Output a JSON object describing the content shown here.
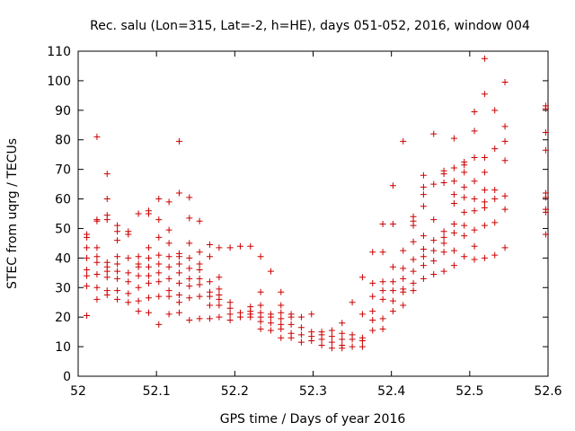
{
  "chart_data": {
    "type": "scatter",
    "title": "Rec. salu (Lon=315, Lat=-2, h=HE), days 051-052, 2016, window 004",
    "xlabel": "GPS time / Days of year 2016",
    "ylabel": "STEC from uqrg / TECUs",
    "xlim": [
      52,
      52.6
    ],
    "ylim": [
      0,
      110
    ],
    "xticks": [
      52,
      52.1,
      52.2,
      52.3,
      52.4,
      52.5,
      52.6
    ],
    "xtick_labels": [
      "52",
      "52.1",
      "52.2",
      "52.3",
      "52.4",
      "52.5",
      "52.6"
    ],
    "yticks": [
      0,
      10,
      20,
      30,
      40,
      50,
      60,
      70,
      80,
      90,
      100,
      110
    ],
    "ytick_labels": [
      "0",
      "10",
      "20",
      "30",
      "40",
      "50",
      "60",
      "70",
      "80",
      "90",
      "100",
      "110"
    ],
    "marker": "+",
    "color": "#cc0000",
    "grid": false,
    "series": [
      {
        "name": "STEC",
        "points": [
          [
            52.011,
            20.5
          ],
          [
            52.011,
            30.5
          ],
          [
            52.011,
            34.0
          ],
          [
            52.011,
            36.0
          ],
          [
            52.011,
            40.0
          ],
          [
            52.011,
            43.5
          ],
          [
            52.011,
            47.0
          ],
          [
            52.011,
            48.0
          ],
          [
            52.024,
            26.0
          ],
          [
            52.024,
            30.0
          ],
          [
            52.024,
            34.5
          ],
          [
            52.024,
            38.5
          ],
          [
            52.024,
            40.5
          ],
          [
            52.024,
            43.5
          ],
          [
            52.024,
            52.5
          ],
          [
            52.024,
            53.0
          ],
          [
            52.024,
            81.0
          ],
          [
            52.037,
            27.5
          ],
          [
            52.037,
            29.0
          ],
          [
            52.037,
            33.5
          ],
          [
            52.037,
            35.5
          ],
          [
            52.037,
            37.0
          ],
          [
            52.037,
            38.5
          ],
          [
            52.037,
            53.0
          ],
          [
            52.037,
            54.5
          ],
          [
            52.037,
            60.0
          ],
          [
            52.037,
            68.5
          ],
          [
            52.05,
            26.0
          ],
          [
            52.05,
            29.0
          ],
          [
            52.05,
            33.0
          ],
          [
            52.05,
            35.5
          ],
          [
            52.05,
            38.0
          ],
          [
            52.05,
            40.5
          ],
          [
            52.05,
            46.0
          ],
          [
            52.05,
            49.0
          ],
          [
            52.05,
            51.0
          ],
          [
            52.064,
            25.0
          ],
          [
            52.064,
            28.0
          ],
          [
            52.064,
            32.0
          ],
          [
            52.064,
            35.0
          ],
          [
            52.064,
            40.0
          ],
          [
            52.064,
            48.0
          ],
          [
            52.064,
            49.0
          ],
          [
            52.077,
            22.0
          ],
          [
            52.077,
            25.5
          ],
          [
            52.077,
            30.0
          ],
          [
            52.077,
            34.0
          ],
          [
            52.077,
            37.0
          ],
          [
            52.077,
            38.0
          ],
          [
            52.077,
            40.5
          ],
          [
            52.077,
            55.0
          ],
          [
            52.09,
            21.5
          ],
          [
            52.09,
            26.5
          ],
          [
            52.09,
            31.5
          ],
          [
            52.09,
            34.0
          ],
          [
            52.09,
            37.0
          ],
          [
            52.09,
            40.0
          ],
          [
            52.09,
            43.5
          ],
          [
            52.09,
            55.0
          ],
          [
            52.09,
            56.0
          ],
          [
            52.103,
            17.5
          ],
          [
            52.103,
            27.0
          ],
          [
            52.103,
            32.0
          ],
          [
            52.103,
            35.0
          ],
          [
            52.103,
            38.0
          ],
          [
            52.103,
            41.0
          ],
          [
            52.103,
            47.0
          ],
          [
            52.103,
            53.0
          ],
          [
            52.103,
            60.0
          ],
          [
            52.116,
            21.0
          ],
          [
            52.116,
            27.0
          ],
          [
            52.116,
            29.0
          ],
          [
            52.116,
            33.0
          ],
          [
            52.116,
            37.0
          ],
          [
            52.116,
            40.5
          ],
          [
            52.116,
            45.0
          ],
          [
            52.116,
            49.5
          ],
          [
            52.116,
            59.0
          ],
          [
            52.129,
            21.5
          ],
          [
            52.129,
            25.0
          ],
          [
            52.129,
            27.5
          ],
          [
            52.129,
            31.5
          ],
          [
            52.129,
            35.0
          ],
          [
            52.129,
            38.0
          ],
          [
            52.129,
            40.5
          ],
          [
            52.129,
            41.5
          ],
          [
            52.129,
            62.0
          ],
          [
            52.129,
            79.5
          ],
          [
            52.142,
            19.0
          ],
          [
            52.142,
            26.5
          ],
          [
            52.142,
            30.5
          ],
          [
            52.142,
            33.0
          ],
          [
            52.142,
            36.5
          ],
          [
            52.142,
            40.0
          ],
          [
            52.142,
            45.0
          ],
          [
            52.142,
            53.5
          ],
          [
            52.142,
            60.5
          ],
          [
            52.155,
            19.5
          ],
          [
            52.155,
            27.0
          ],
          [
            52.155,
            31.0
          ],
          [
            52.155,
            33.0
          ],
          [
            52.155,
            36.0
          ],
          [
            52.155,
            38.0
          ],
          [
            52.155,
            42.0
          ],
          [
            52.155,
            52.5
          ],
          [
            52.168,
            19.5
          ],
          [
            52.168,
            24.0
          ],
          [
            52.168,
            27.0
          ],
          [
            52.168,
            28.5
          ],
          [
            52.168,
            32.0
          ],
          [
            52.168,
            40.5
          ],
          [
            52.168,
            44.5
          ],
          [
            52.18,
            20.0
          ],
          [
            52.18,
            24.0
          ],
          [
            52.18,
            26.0
          ],
          [
            52.18,
            27.5
          ],
          [
            52.18,
            29.5
          ],
          [
            52.18,
            33.5
          ],
          [
            52.18,
            43.5
          ],
          [
            52.194,
            19.0
          ],
          [
            52.194,
            21.0
          ],
          [
            52.194,
            23.0
          ],
          [
            52.194,
            25.0
          ],
          [
            52.194,
            43.5
          ],
          [
            52.207,
            20.0
          ],
          [
            52.207,
            21.5
          ],
          [
            52.207,
            44.0
          ],
          [
            52.22,
            20.0
          ],
          [
            52.22,
            21.0
          ],
          [
            52.22,
            22.0
          ],
          [
            52.22,
            23.5
          ],
          [
            52.22,
            44.0
          ],
          [
            52.233,
            16.0
          ],
          [
            52.233,
            18.5
          ],
          [
            52.233,
            20.0
          ],
          [
            52.233,
            21.5
          ],
          [
            52.233,
            24.0
          ],
          [
            52.233,
            28.5
          ],
          [
            52.233,
            40.5
          ],
          [
            52.246,
            15.5
          ],
          [
            52.246,
            18.0
          ],
          [
            52.246,
            20.0
          ],
          [
            52.246,
            21.0
          ],
          [
            52.246,
            35.5
          ],
          [
            52.259,
            13.0
          ],
          [
            52.259,
            16.0
          ],
          [
            52.259,
            17.5
          ],
          [
            52.259,
            19.5
          ],
          [
            52.259,
            21.5
          ],
          [
            52.259,
            24.0
          ],
          [
            52.259,
            28.5
          ],
          [
            52.272,
            13.0
          ],
          [
            52.272,
            14.5
          ],
          [
            52.272,
            17.5
          ],
          [
            52.272,
            20.0
          ],
          [
            52.272,
            21.0
          ],
          [
            52.285,
            11.5
          ],
          [
            52.285,
            14.0
          ],
          [
            52.285,
            16.5
          ],
          [
            52.285,
            20.0
          ],
          [
            52.298,
            12.0
          ],
          [
            52.298,
            13.5
          ],
          [
            52.298,
            15.0
          ],
          [
            52.298,
            21.0
          ],
          [
            52.311,
            10.5
          ],
          [
            52.311,
            12.5
          ],
          [
            52.311,
            14.0
          ],
          [
            52.311,
            15.0
          ],
          [
            52.324,
            9.5
          ],
          [
            52.324,
            11.5
          ],
          [
            52.324,
            13.5
          ],
          [
            52.324,
            15.5
          ],
          [
            52.337,
            9.5
          ],
          [
            52.337,
            10.5
          ],
          [
            52.337,
            12.5
          ],
          [
            52.337,
            14.5
          ],
          [
            52.337,
            18.0
          ],
          [
            52.35,
            10.0
          ],
          [
            52.35,
            12.5
          ],
          [
            52.35,
            14.0
          ],
          [
            52.35,
            25.0
          ],
          [
            52.363,
            10.0
          ],
          [
            52.363,
            12.0
          ],
          [
            52.363,
            13.0
          ],
          [
            52.363,
            21.0
          ],
          [
            52.363,
            33.5
          ],
          [
            52.376,
            15.5
          ],
          [
            52.376,
            19.0
          ],
          [
            52.376,
            22.0
          ],
          [
            52.376,
            27.0
          ],
          [
            52.376,
            31.5
          ],
          [
            52.376,
            42.0
          ],
          [
            52.389,
            16.0
          ],
          [
            52.389,
            19.5
          ],
          [
            52.389,
            26.0
          ],
          [
            52.389,
            29.0
          ],
          [
            52.389,
            32.0
          ],
          [
            52.389,
            42.0
          ],
          [
            52.389,
            51.5
          ],
          [
            52.402,
            22.0
          ],
          [
            52.402,
            25.5
          ],
          [
            52.402,
            29.0
          ],
          [
            52.402,
            32.0
          ],
          [
            52.402,
            37.0
          ],
          [
            52.402,
            51.5
          ],
          [
            52.402,
            64.5
          ],
          [
            52.415,
            24.0
          ],
          [
            52.415,
            28.5
          ],
          [
            52.415,
            29.5
          ],
          [
            52.415,
            33.0
          ],
          [
            52.415,
            36.5
          ],
          [
            52.415,
            42.5
          ],
          [
            52.415,
            79.5
          ],
          [
            52.428,
            29.0
          ],
          [
            52.428,
            31.5
          ],
          [
            52.428,
            35.5
          ],
          [
            52.428,
            39.5
          ],
          [
            52.428,
            45.5
          ],
          [
            52.428,
            51.0
          ],
          [
            52.428,
            52.5
          ],
          [
            52.428,
            54.0
          ],
          [
            52.441,
            33.0
          ],
          [
            52.441,
            37.5
          ],
          [
            52.441,
            40.5
          ],
          [
            52.441,
            43.0
          ],
          [
            52.441,
            47.5
          ],
          [
            52.441,
            57.5
          ],
          [
            52.441,
            61.5
          ],
          [
            52.441,
            64.0
          ],
          [
            52.441,
            68.0
          ],
          [
            52.454,
            34.5
          ],
          [
            52.454,
            39.0
          ],
          [
            52.454,
            42.5
          ],
          [
            52.454,
            46.0
          ],
          [
            52.454,
            53.0
          ],
          [
            52.454,
            65.0
          ],
          [
            52.454,
            82.0
          ],
          [
            52.467,
            35.5
          ],
          [
            52.467,
            42.0
          ],
          [
            52.467,
            45.0
          ],
          [
            52.467,
            47.0
          ],
          [
            52.467,
            49.0
          ],
          [
            52.467,
            65.5
          ],
          [
            52.467,
            68.5
          ],
          [
            52.467,
            69.5
          ],
          [
            52.48,
            37.5
          ],
          [
            52.48,
            42.5
          ],
          [
            52.48,
            48.5
          ],
          [
            52.48,
            51.5
          ],
          [
            52.48,
            58.5
          ],
          [
            52.48,
            61.5
          ],
          [
            52.48,
            66.0
          ],
          [
            52.48,
            70.5
          ],
          [
            52.48,
            80.5
          ],
          [
            52.493,
            40.5
          ],
          [
            52.493,
            47.5
          ],
          [
            52.493,
            51.0
          ],
          [
            52.493,
            55.5
          ],
          [
            52.493,
            60.5
          ],
          [
            52.493,
            64.0
          ],
          [
            52.493,
            69.0
          ],
          [
            52.493,
            71.5
          ],
          [
            52.493,
            72.5
          ],
          [
            52.506,
            39.5
          ],
          [
            52.506,
            44.0
          ],
          [
            52.506,
            49.5
          ],
          [
            52.506,
            56.0
          ],
          [
            52.506,
            60.0
          ],
          [
            52.506,
            66.0
          ],
          [
            52.506,
            74.0
          ],
          [
            52.506,
            83.0
          ],
          [
            52.506,
            89.5
          ],
          [
            52.519,
            40.0
          ],
          [
            52.519,
            51.0
          ],
          [
            52.519,
            57.0
          ],
          [
            52.519,
            59.0
          ],
          [
            52.519,
            63.0
          ],
          [
            52.519,
            69.0
          ],
          [
            52.519,
            74.0
          ],
          [
            52.519,
            95.5
          ],
          [
            52.519,
            107.5
          ],
          [
            52.532,
            41.0
          ],
          [
            52.532,
            52.0
          ],
          [
            52.532,
            60.0
          ],
          [
            52.532,
            63.0
          ],
          [
            52.532,
            77.0
          ],
          [
            52.532,
            90.0
          ],
          [
            52.545,
            43.5
          ],
          [
            52.545,
            56.5
          ],
          [
            52.545,
            61.0
          ],
          [
            52.545,
            73.0
          ],
          [
            52.545,
            79.5
          ],
          [
            52.545,
            84.5
          ],
          [
            52.545,
            99.5
          ],
          [
            52.597,
            48.0
          ],
          [
            52.597,
            55.5
          ],
          [
            52.597,
            56.5
          ],
          [
            52.597,
            60.5
          ],
          [
            52.597,
            62.0
          ],
          [
            52.597,
            76.5
          ],
          [
            52.597,
            82.5
          ],
          [
            52.597,
            90.5
          ],
          [
            52.597,
            91.5
          ]
        ]
      }
    ]
  }
}
